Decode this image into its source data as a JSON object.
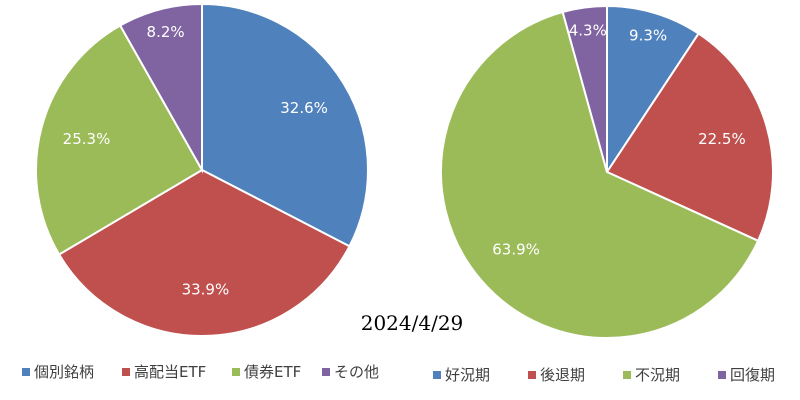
{
  "date_label": "2024/4/29",
  "chart_data": [
    {
      "type": "pie",
      "slices": [
        {
          "label": "個別銘柄",
          "value": 32.6,
          "display": "32.6%",
          "color": "#4F81BD"
        },
        {
          "label": "高配当ETF",
          "value": 33.9,
          "display": "33.9%",
          "color": "#C0504D"
        },
        {
          "label": "債券ETF",
          "value": 25.3,
          "display": "25.3%",
          "color": "#9BBB59"
        },
        {
          "label": "その他",
          "value": 8.2,
          "display": "8.2%",
          "color": "#8064A2"
        }
      ],
      "legend_position": "bottom",
      "start_angle": "12 o'clock",
      "direction": "clockwise"
    },
    {
      "type": "pie",
      "slices": [
        {
          "label": "好況期",
          "value": 9.3,
          "display": "9.3%",
          "color": "#4F81BD"
        },
        {
          "label": "後退期",
          "value": 22.5,
          "display": "22.5%",
          "color": "#C0504D"
        },
        {
          "label": "不況期",
          "value": 63.9,
          "display": "63.9%",
          "color": "#9BBB59"
        },
        {
          "label": "回復期",
          "value": 4.3,
          "display": "4.3%",
          "color": "#8064A2"
        }
      ],
      "legend_position": "bottom",
      "start_angle": "12 o'clock",
      "direction": "clockwise"
    }
  ]
}
